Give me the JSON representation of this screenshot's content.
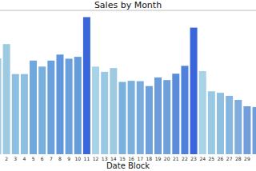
{
  "chart_data": {
    "type": "bar",
    "title": "Sales by Month",
    "x_label": "Date Block",
    "categories": [
      null,
      "2",
      "3",
      "4",
      "5",
      "6",
      "7",
      "8",
      "9",
      "10",
      "11",
      "12",
      "13",
      "14",
      "15",
      "16",
      "17",
      "18",
      "19",
      "20",
      "21",
      "22",
      "23",
      "24",
      "25",
      "26",
      "27",
      "28",
      "29",
      null
    ],
    "values": [
      128000,
      147000,
      107000,
      107000,
      125000,
      117000,
      125000,
      133000,
      127500,
      130000,
      183000,
      117000,
      110000,
      115000,
      96500,
      98000,
      97500,
      91000,
      102500,
      99000,
      107500,
      118000,
      169000,
      111000,
      84000,
      82000,
      78000,
      72500,
      64000,
      63000
    ],
    "colors": [
      "#9ecae1",
      "#9ecae1",
      "#8fbfe0",
      "#8fbfe0",
      "#6fa8dc",
      "#79afdc",
      "#6aa0dc",
      "#5f96dc",
      "#6aa0dc",
      "#659cdc",
      "#3a66dc",
      "#a6d4e6",
      "#98c8e3",
      "#9ecae1",
      "#79b0dd",
      "#79b0dd",
      "#7aabdd",
      "#6e9fdd",
      "#6b9cdc",
      "#6ea0dc",
      "#5a8cdc",
      "#4f80dc",
      "#3a66dc",
      "#a6d4e6",
      "#98c8e3",
      "#8fc0e0",
      "#86b6df",
      "#7eacdd",
      "#729fdc",
      "#729fdc"
    ],
    "ylim": [
      0,
      192000
    ],
    "tick_labels": "x",
    "grid": false
  }
}
